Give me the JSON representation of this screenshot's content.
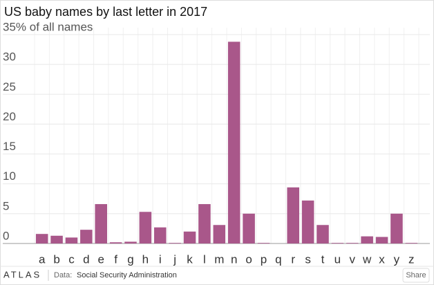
{
  "chart_data": {
    "type": "bar",
    "title": "US baby names by last letter in 2017",
    "categories": [
      "a",
      "b",
      "c",
      "d",
      "e",
      "f",
      "g",
      "h",
      "i",
      "j",
      "k",
      "l",
      "m",
      "n",
      "o",
      "p",
      "q",
      "r",
      "s",
      "t",
      "u",
      "v",
      "w",
      "x",
      "y",
      "z"
    ],
    "values": [
      1.6,
      1.3,
      1.0,
      2.3,
      6.6,
      0.2,
      0.3,
      5.3,
      2.7,
      0.1,
      2.0,
      6.6,
      3.1,
      33.8,
      5.0,
      0.1,
      0,
      9.4,
      7.2,
      3.1,
      0.1,
      0.1,
      1.2,
      1.1,
      5.0,
      0.1
    ],
    "color": "#a9578a",
    "ylim": [
      0,
      35
    ],
    "yticks": [
      0,
      5,
      10,
      15,
      20,
      25,
      30,
      {
        "value": 35,
        "label": "35% of all names"
      }
    ],
    "grid": true
  },
  "footer": {
    "logo": "ATLAS",
    "source_label": "Data:",
    "source": "Social Security Administration",
    "share": "Share"
  }
}
